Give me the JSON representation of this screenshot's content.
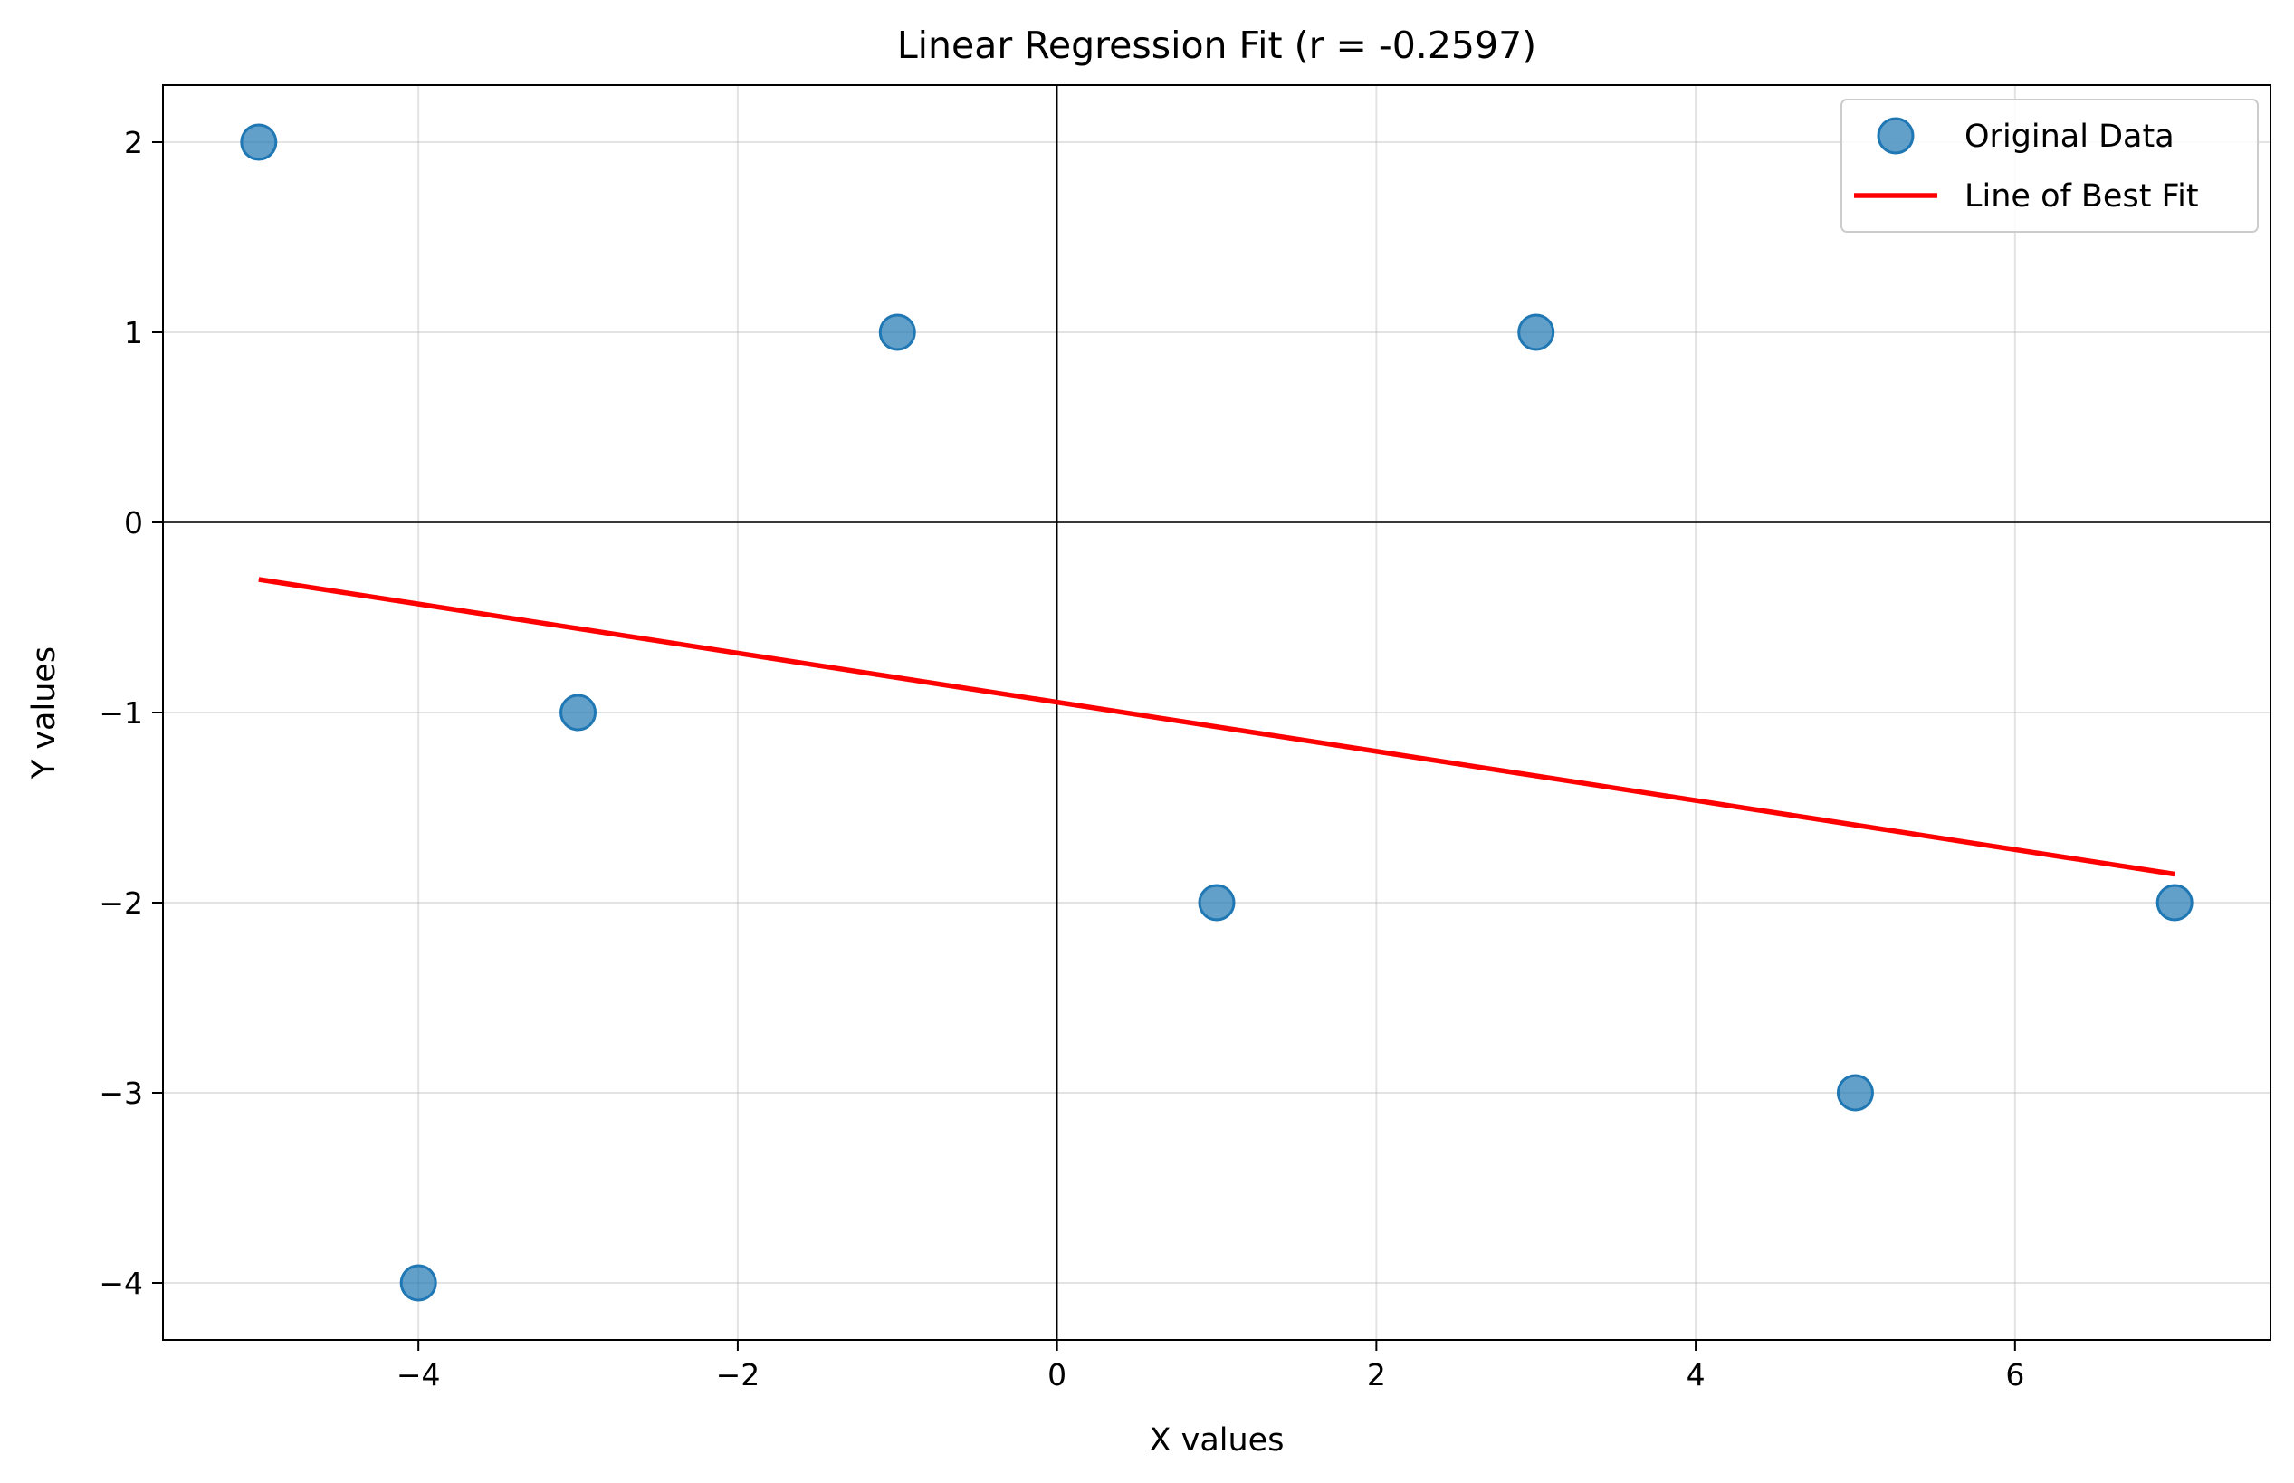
{
  "chart_data": {
    "type": "scatter",
    "title": "Linear Regression Fit (r = -0.2597)",
    "xlabel": "X values",
    "ylabel": "Y values",
    "xlim": [
      -5.6,
      7.6
    ],
    "ylim": [
      -4.3,
      2.3
    ],
    "x_ticks": [
      -4,
      -2,
      0,
      2,
      4,
      6
    ],
    "y_ticks": [
      -4,
      -3,
      -2,
      -1,
      0,
      1,
      2
    ],
    "x_tick_labels": [
      "−4",
      "−2",
      "0",
      "2",
      "4",
      "6"
    ],
    "y_tick_labels": [
      "−4",
      "−3",
      "−2",
      "−1",
      "0",
      "1",
      "2"
    ],
    "grid": true,
    "zero_lines": true,
    "legend_position": "top-right",
    "series": [
      {
        "name": "Original Data",
        "kind": "scatter",
        "color": "#1f77b4",
        "points": [
          {
            "x": -5,
            "y": 2
          },
          {
            "x": -4,
            "y": -4
          },
          {
            "x": -3,
            "y": -1
          },
          {
            "x": -1,
            "y": 1
          },
          {
            "x": 1,
            "y": -2
          },
          {
            "x": 3,
            "y": 1
          },
          {
            "x": 5,
            "y": -3
          },
          {
            "x": 7,
            "y": -2
          }
        ]
      },
      {
        "name": "Line of Best Fit",
        "kind": "line",
        "color": "#ff0000",
        "points": [
          {
            "x": -5,
            "y": -0.3
          },
          {
            "x": 7,
            "y": -1.85
          }
        ]
      }
    ]
  }
}
